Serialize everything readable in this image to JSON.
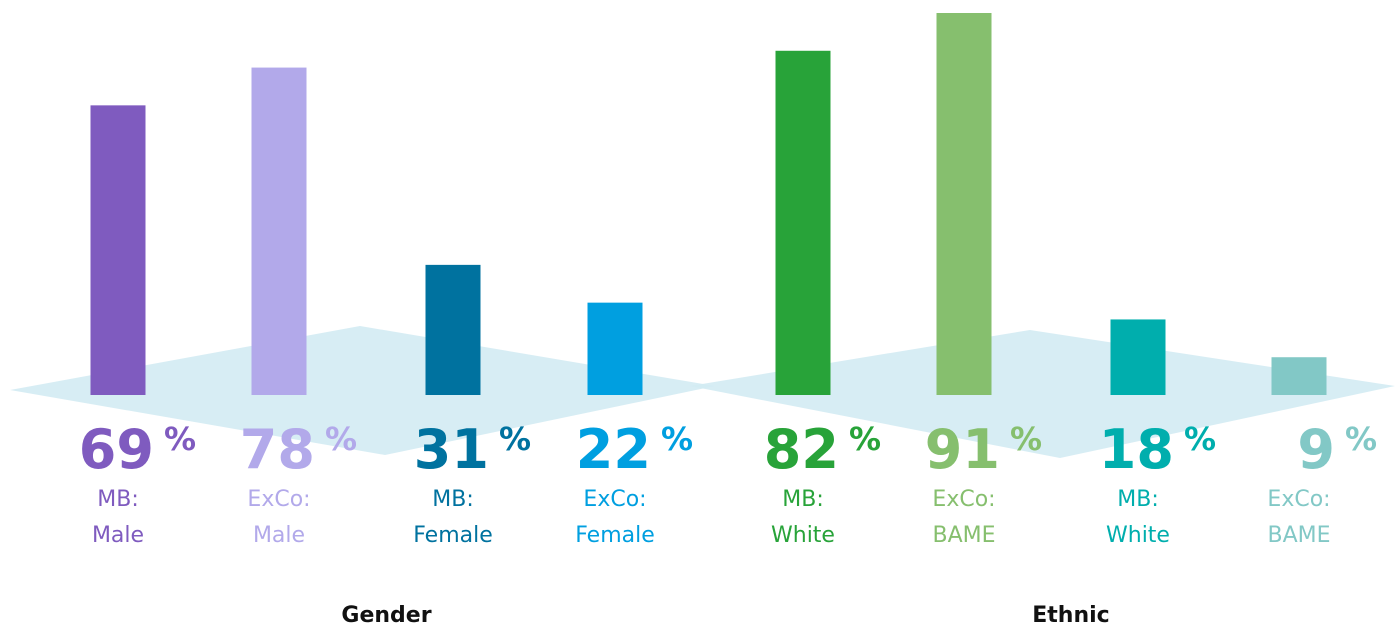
{
  "chart_data": {
    "type": "bar",
    "categories": [
      [
        "MB:",
        "Male"
      ],
      [
        "ExCo:",
        "Male"
      ],
      [
        "MB:",
        "Female"
      ],
      [
        "ExCo:",
        "Female"
      ],
      [
        "MB:",
        "White"
      ],
      [
        "ExCo:",
        "BAME"
      ],
      [
        "MB:",
        "White"
      ],
      [
        "ExCo:",
        "BAME"
      ]
    ],
    "values": [
      69,
      78,
      31,
      22,
      82,
      91,
      18,
      9
    ],
    "value_labels": [
      "69 %",
      "78 %",
      "31 %",
      "22 %",
      "82 %",
      "91 %",
      "18 %",
      "9 %"
    ],
    "colors": [
      "#7f5bbf",
      "#b2a9ea",
      "#00729f",
      "#009fe0",
      "#28a339",
      "#86bf6e",
      "#00aead",
      "#82c8c6"
    ],
    "groups": [
      {
        "label": "Gender",
        "size": 4
      },
      {
        "label": "Ethnic",
        "size": 4
      }
    ]
  }
}
